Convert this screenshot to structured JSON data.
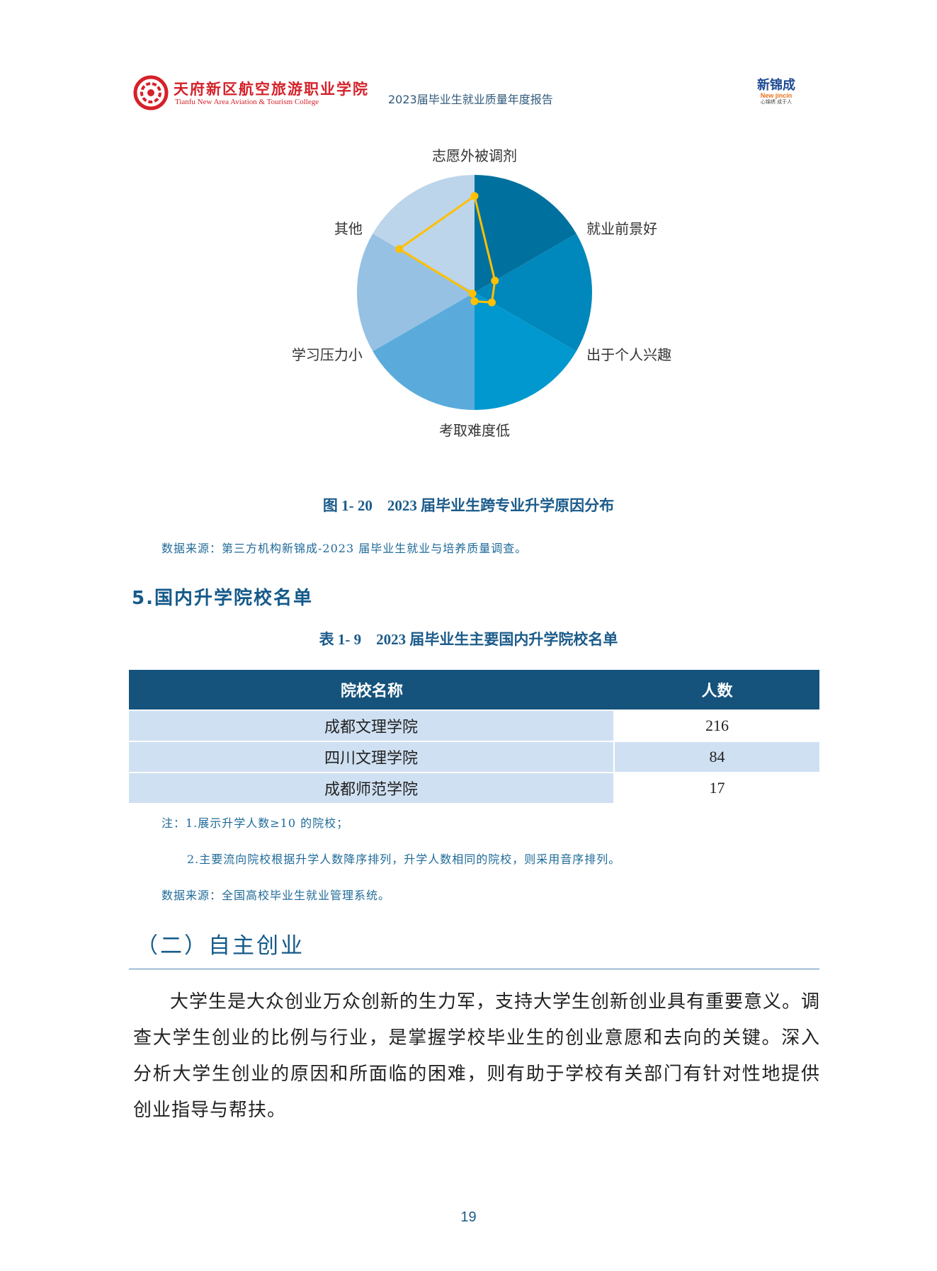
{
  "header": {
    "college_cn": "天府新区航空旅游职业学院",
    "college_en": "Tianfu New Area Aviation & Tourism College",
    "report_title": "2023届毕业生就业质量年度报告",
    "partner_logo": {
      "name": "新锦成",
      "en": "New jincin",
      "slogan": "心锦绣 成于人"
    }
  },
  "chart_data": {
    "type": "radar",
    "title": "",
    "categories": [
      "志愿外被调剂",
      "就业前景好",
      "出于个人兴趣",
      "考取难度低",
      "学习压力小",
      "其他"
    ],
    "values_relative_to_axis_max": [
      0.82,
      0.2,
      0.17,
      0.075,
      0.02,
      0.74
    ],
    "sector_colors": [
      "#00719f",
      "#0087bb",
      "#0098cf",
      "#5aabdb",
      "#97c1e3",
      "#bdd5eb"
    ],
    "series_color": "#ffc000",
    "grid": false
  },
  "figure_caption": "图 1- 20　2023 届毕业生跨专业升学原因分布",
  "figure_source": "数据来源：第三方机构新锦成-2023 届毕业生就业与培养质量调查。",
  "section5_title": "5.国内升学院校名单",
  "table_caption": "表 1- 9　2023 届毕业生主要国内升学院校名单",
  "table": {
    "headers": [
      "院校名称",
      "人数"
    ],
    "rows": [
      {
        "name": "成都文理学院",
        "count": "216"
      },
      {
        "name": "四川文理学院",
        "count": "84"
      },
      {
        "name": "成都师范学院",
        "count": "17"
      }
    ]
  },
  "notes": {
    "note1": "注：1.展示升学人数≥10 的院校；",
    "note2": "2.主要流向院校根据升学人数降序排列，升学人数相同的院校，则采用音序排列。",
    "source": "数据来源：全国高校毕业生就业管理系统。"
  },
  "section2_title": "（二）自主创业",
  "paragraph": "大学生是大众创业万众创新的生力军，支持大学生创新创业具有重要意义。调查大学生创业的比例与行业，是掌握学校毕业生的创业意愿和去向的关键。深入分析大学生创业的原因和所面临的困难，则有助于学校有关部门有针对性地提供创业指导与帮扶。",
  "page_number": "19"
}
